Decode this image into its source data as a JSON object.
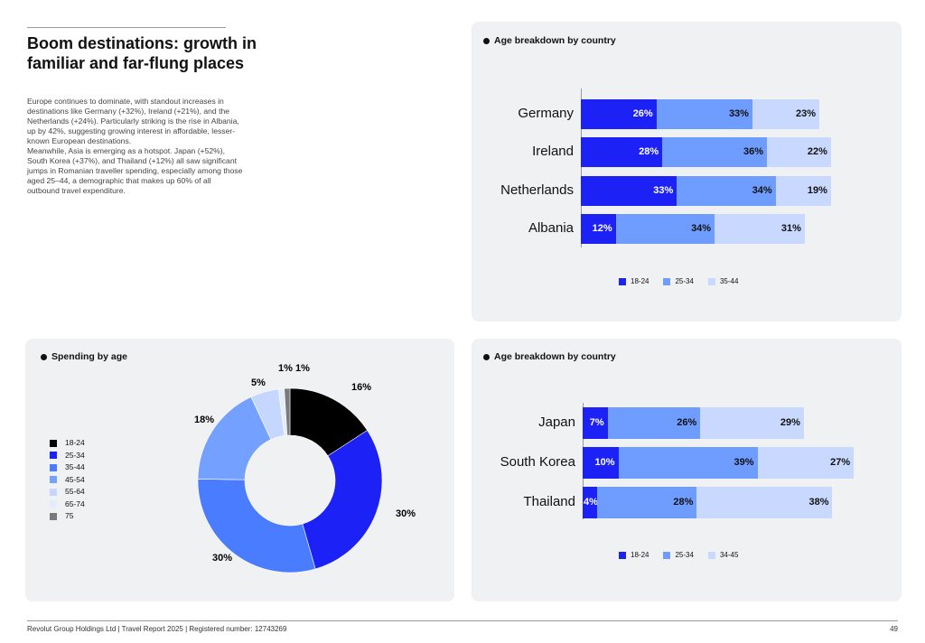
{
  "header": {
    "title": "Boom destinations: growth in familiar and far-flung places"
  },
  "body": {
    "para1": "Europe continues to dominate, with standout increases in destinations like Germany (+32%), Ireland (+21%), and the Netherlands (+24%). Particularly striking is the rise in Albania, up by 42%, suggesting growing interest in affordable, lesser-known European destinations.",
    "para2": "Meanwhile, Asia is emerging as a hotspot. Japan (+52%), South Korea (+37%), and Thailand (+12%) all saw significant jumps in Romanian traveller spending, especially among those aged 25–44, a demographic that makes up 60% of all outbound travel expenditure."
  },
  "chart_data": [
    {
      "type": "bar",
      "orientation": "horizontal",
      "stacked": true,
      "title": "Age breakdown by country",
      "categories": [
        "Germany",
        "Ireland",
        "Netherlands",
        "Albania"
      ],
      "series": [
        {
          "name": "18-24",
          "color": "#1c22f5",
          "values": [
            26,
            28,
            33,
            12
          ]
        },
        {
          "name": "25-34",
          "color": "#6e9cff",
          "values": [
            33,
            36,
            34,
            34
          ]
        },
        {
          "name": "35-44",
          "color": "#c8d8ff",
          "values": [
            23,
            22,
            19,
            31
          ]
        }
      ],
      "value_labels": [
        [
          "26%",
          "33%",
          "23%"
        ],
        [
          "28%",
          "36%",
          "22%"
        ],
        [
          "33%",
          "34%",
          "19%"
        ],
        [
          "12%",
          "34%",
          "31%"
        ]
      ],
      "legend": "bottom"
    },
    {
      "type": "pie",
      "donut": true,
      "title": "Spending by age",
      "categories": [
        "18-24",
        "25-34",
        "35-44",
        "45-54",
        "55-64",
        "65-74",
        "75"
      ],
      "values": [
        16,
        30,
        30,
        18,
        5,
        1,
        1
      ],
      "value_labels": [
        "16%",
        "30%",
        "30%",
        "18%",
        "5%",
        "1%",
        "1%"
      ],
      "colors": [
        "#000000",
        "#1c22f5",
        "#4a7cff",
        "#74a0ff",
        "#c6d7ff",
        "#e3ecff",
        "#7a7a7a"
      ],
      "legend": "left"
    },
    {
      "type": "bar",
      "orientation": "horizontal",
      "stacked": true,
      "title": "Age breakdown by country",
      "categories": [
        "Japan",
        "South Korea",
        "Thailand"
      ],
      "series": [
        {
          "name": "18-24",
          "color": "#1c22f5",
          "values": [
            7,
            10,
            4
          ]
        },
        {
          "name": "25-34",
          "color": "#6e9cff",
          "values": [
            26,
            39,
            28
          ]
        },
        {
          "name": "34-45",
          "color": "#c8d8ff",
          "values": [
            29,
            27,
            38
          ]
        }
      ],
      "value_labels": [
        [
          "7%",
          "26%",
          "29%"
        ],
        [
          "10%",
          "39%",
          "27%"
        ],
        [
          "4%",
          "28%",
          "38%"
        ]
      ],
      "legend": "bottom"
    }
  ],
  "footer": {
    "left": "Revolut Group Holdings Ltd | Travel Report 2025 | Registered number: 12743269",
    "page": "49"
  }
}
